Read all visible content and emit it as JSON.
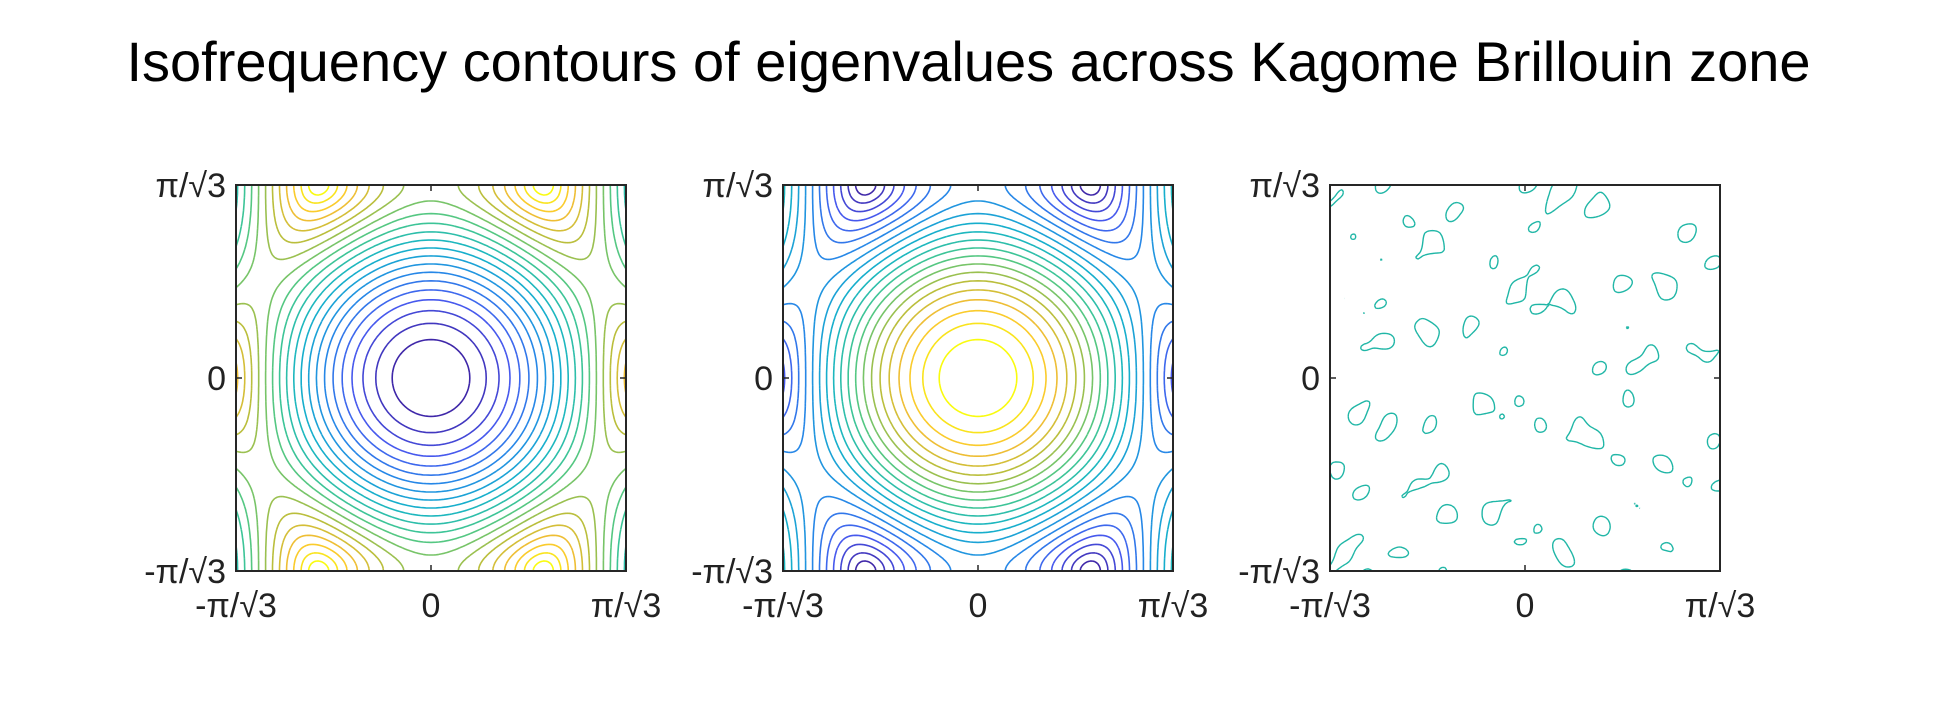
{
  "title": "Isofrequency contours of eigenvalues across Kagome Brillouin zone",
  "chart_data": [
    {
      "type": "contour",
      "band": 1,
      "xlim": [
        -1.8138,
        1.8138
      ],
      "ylim": [
        -1.8138,
        1.8138
      ],
      "xticks": [
        {
          "value": -1.8138,
          "label": "-π/√3"
        },
        {
          "value": 0,
          "label": "0"
        },
        {
          "value": 1.8138,
          "label": "π/√3"
        }
      ],
      "yticks": [
        {
          "value": -1.8138,
          "label": "-π/√3"
        },
        {
          "value": 0,
          "label": "0"
        },
        {
          "value": 1.8138,
          "label": "π/√3"
        }
      ],
      "colormap": "parula",
      "color_low": "#3e26a8",
      "color_high": "#f9fb0e",
      "levels": 22,
      "minimum_at": [
        0,
        0
      ],
      "grid": false
    },
    {
      "type": "contour",
      "band": 2,
      "xlim": [
        -1.8138,
        1.8138
      ],
      "ylim": [
        -1.8138,
        1.8138
      ],
      "xticks": [
        {
          "value": -1.8138,
          "label": "-π/√3"
        },
        {
          "value": 0,
          "label": "0"
        },
        {
          "value": 1.8138,
          "label": "π/√3"
        }
      ],
      "yticks": [
        {
          "value": -1.8138,
          "label": "-π/√3"
        },
        {
          "value": 0,
          "label": "0"
        },
        {
          "value": 1.8138,
          "label": "π/√3"
        }
      ],
      "colormap": "parula",
      "color_low": "#3e26a8",
      "color_high": "#f9fb0e",
      "levels": 22,
      "maximum_at": [
        0,
        0
      ],
      "grid": false
    },
    {
      "type": "contour",
      "band": 3,
      "xlim": [
        -1.8138,
        1.8138
      ],
      "ylim": [
        -1.8138,
        1.8138
      ],
      "xticks": [
        {
          "value": -1.8138,
          "label": "-π/√3"
        },
        {
          "value": 0,
          "label": "0"
        },
        {
          "value": 1.8138,
          "label": "π/√3"
        }
      ],
      "yticks": [
        {
          "value": -1.8138,
          "label": "-π/√3"
        },
        {
          "value": 0,
          "label": "0"
        },
        {
          "value": 1.8138,
          "label": "π/√3"
        }
      ],
      "colormap": "single",
      "line_color": "#1fb6a6",
      "flat_band": true,
      "grid": false
    }
  ]
}
